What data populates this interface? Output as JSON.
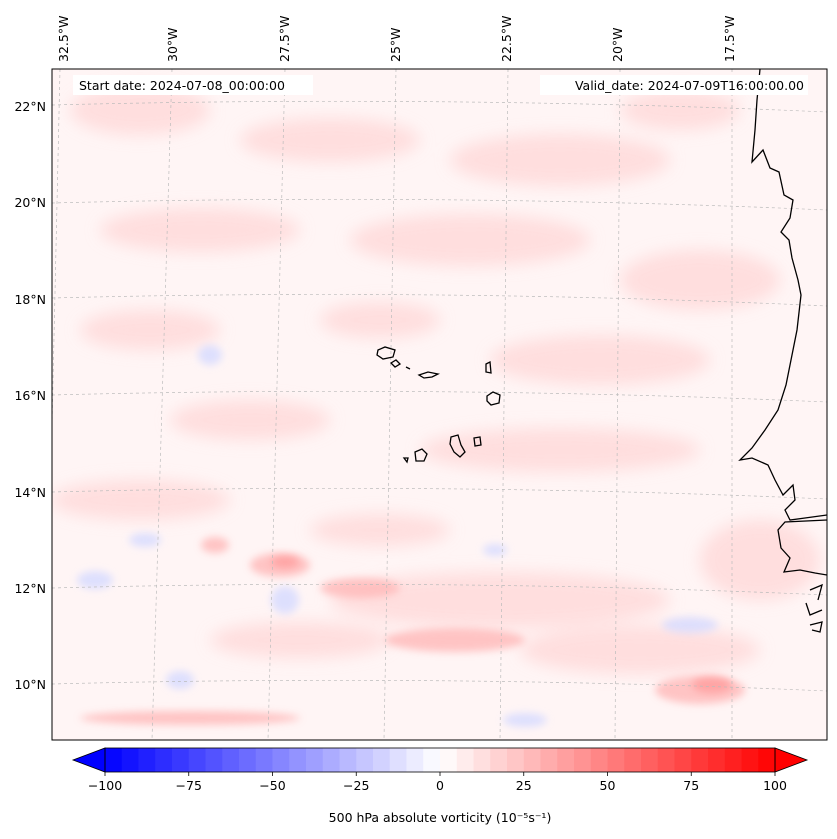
{
  "map": {
    "start_date_label": "Start date: 2024-07-08_00:00:00",
    "valid_date_label": "Valid_date: 2024-07-09T16:00:00.00",
    "lon_labels": [
      "32.5°W",
      "30°W",
      "27.5°W",
      "25°W",
      "22.5°W",
      "20°W",
      "17.5°W"
    ],
    "lat_labels": [
      "22°N",
      "20°N",
      "18°N",
      "16°N",
      "14°N",
      "12°N",
      "10°N"
    ],
    "gridlines": true
  },
  "colorbar": {
    "ticks": [
      "−100",
      "−75",
      "−50",
      "−25",
      "0",
      "25",
      "50",
      "75",
      "100"
    ],
    "label": "500 hPa absolute vorticity (10⁻⁵s⁻¹)",
    "min": -100,
    "max": 100,
    "colormap": "bwr",
    "negative_color": "#0000ff",
    "zero_color": "#ffffff",
    "positive_color": "#ff0000"
  }
}
